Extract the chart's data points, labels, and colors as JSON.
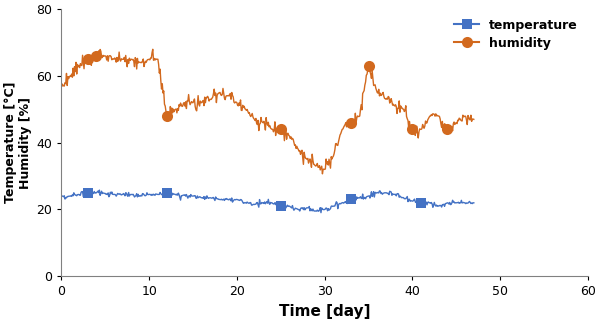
{
  "xlabel": "Time [day]",
  "ylabel_line1": "Temperature [°C]",
  "ylabel_line2": "Humidity [%]",
  "xlim": [
    0,
    60
  ],
  "ylim": [
    0,
    80
  ],
  "yticks": [
    0,
    20,
    40,
    60,
    80
  ],
  "xticks": [
    0,
    10,
    20,
    30,
    40,
    50,
    60
  ],
  "temp_color": "#4472C4",
  "humid_color": "#D2691E",
  "temp_marker": "s",
  "humid_marker": "o",
  "temp_marker_size": 7,
  "humid_marker_size": 8,
  "temp_x": [
    0,
    1,
    2,
    3,
    4,
    5,
    6,
    7,
    8,
    9,
    10,
    11,
    12,
    13,
    14,
    15,
    16,
    17,
    18,
    19,
    20,
    21,
    22,
    23,
    24,
    25,
    26,
    27,
    28,
    29,
    30,
    31,
    32,
    33,
    34,
    35,
    36,
    37,
    38,
    39,
    40,
    41,
    42,
    43,
    44,
    45,
    46,
    47
  ],
  "temp_y": [
    24,
    24,
    24.5,
    25,
    25,
    24.8,
    24.5,
    24.5,
    24.5,
    24,
    24.5,
    24.5,
    25,
    24.5,
    24.3,
    24,
    23.5,
    23.5,
    23,
    23,
    23,
    22,
    21.5,
    22,
    22,
    21,
    21,
    20,
    20.5,
    19.5,
    20,
    21,
    22,
    23,
    23.5,
    24,
    25,
    25,
    24.5,
    23.5,
    22.5,
    22,
    22,
    21,
    22,
    22,
    22,
    22
  ],
  "temp_marker_x": [
    3,
    12,
    25,
    33,
    41
  ],
  "temp_marker_y": [
    25,
    25,
    21,
    23,
    22
  ],
  "humid_x": [
    0,
    1,
    2,
    3,
    4,
    5,
    6,
    7,
    8,
    9,
    10,
    11,
    12,
    13,
    14,
    15,
    16,
    17,
    18,
    19,
    20,
    21,
    22,
    23,
    24,
    25,
    26,
    27,
    28,
    29,
    30,
    31,
    32,
    33,
    34,
    35,
    36,
    37,
    38,
    39,
    40,
    41,
    42,
    43,
    44,
    45,
    46,
    47
  ],
  "humid_y": [
    57,
    60,
    63,
    65,
    66,
    66,
    65,
    65,
    65,
    64,
    65,
    65,
    48,
    50,
    52,
    52,
    52,
    53,
    55,
    54,
    52,
    50,
    47,
    46,
    44,
    44,
    42,
    38,
    35,
    33,
    32,
    36,
    44,
    46,
    48,
    63,
    55,
    53,
    51,
    50,
    44,
    44,
    48,
    48,
    44,
    46,
    48,
    47
  ],
  "humid_marker_x": [
    3,
    4,
    12,
    25,
    33,
    35,
    40,
    44
  ],
  "humid_marker_y": [
    65,
    66,
    48,
    44,
    46,
    63,
    44,
    44
  ]
}
